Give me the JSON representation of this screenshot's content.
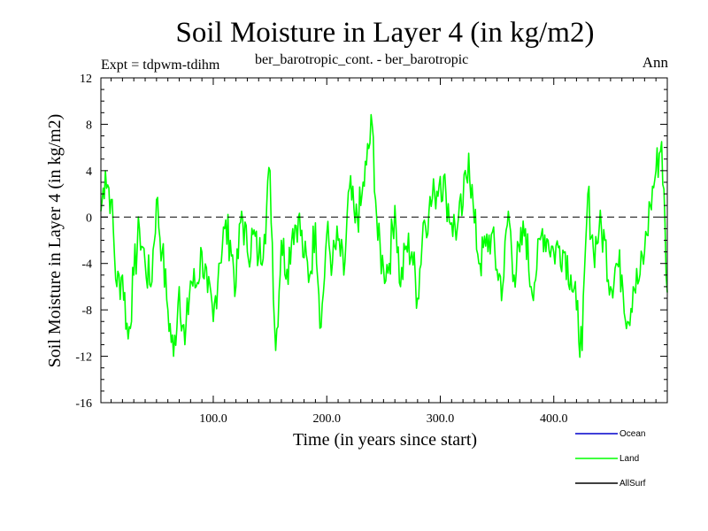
{
  "chart_data": {
    "type": "line",
    "title": "Soil Moisture in Layer 4 (in kg/m2)",
    "experiment_label": "Expt = tdpwm-tdihm",
    "subtitle": "ber_barotropic_cont. - ber_barotropic",
    "period_label": "Ann",
    "xlabel": "Time (in years since start)",
    "ylabel": "Soil Moisture in Layer 4 (in kg/m2)",
    "xlim": [
      1,
      500
    ],
    "ylim": [
      -16,
      12
    ],
    "x_ticks": [
      100,
      200,
      300,
      400
    ],
    "x_tick_labels": [
      "100.0",
      "200.0",
      "300.0",
      "400.0"
    ],
    "y_ticks": [
      -16,
      -12,
      -8,
      -4,
      0,
      4,
      8,
      12
    ],
    "y_tick_labels": [
      "-16",
      "-12",
      "-8",
      "-4",
      "0",
      "4",
      "8",
      "12"
    ],
    "zero_line": true,
    "legend": [
      {
        "name": "Ocean",
        "color": "#0000cc"
      },
      {
        "name": "Land",
        "color": "#00ff00"
      },
      {
        "name": "AllSurf",
        "color": "#000000"
      }
    ],
    "series": [
      {
        "name": "Land",
        "color": "#00ff00",
        "x": [
          1,
          5,
          10,
          15,
          20,
          25,
          30,
          35,
          40,
          45,
          50,
          55,
          60,
          65,
          70,
          75,
          80,
          85,
          90,
          95,
          100,
          105,
          110,
          115,
          120,
          125,
          130,
          135,
          140,
          145,
          150,
          155,
          160,
          165,
          170,
          175,
          180,
          185,
          190,
          195,
          200,
          205,
          210,
          215,
          220,
          225,
          230,
          235,
          240,
          245,
          250,
          255,
          260,
          265,
          270,
          275,
          280,
          285,
          290,
          295,
          300,
          305,
          310,
          315,
          320,
          325,
          330,
          335,
          340,
          345,
          350,
          355,
          360,
          365,
          370,
          375,
          380,
          385,
          390,
          395,
          400,
          405,
          410,
          415,
          420,
          425,
          430,
          435,
          440,
          445,
          450,
          455,
          460,
          465,
          470,
          475,
          480,
          485,
          490,
          495,
          500
        ],
        "values": [
          0.5,
          4.0,
          1.5,
          -6.0,
          -5.0,
          -10.5,
          -5.0,
          -1.0,
          -4.0,
          -6.0,
          1.5,
          -3.0,
          -8.0,
          -12.0,
          -6.0,
          -11.0,
          -5.5,
          -6.0,
          -3.0,
          -6.5,
          -9.0,
          -4.0,
          -1.0,
          -2.0,
          -6.0,
          0.5,
          -3.0,
          -1.5,
          -3.5,
          -1.5,
          4.0,
          -11.5,
          -2.0,
          -4.5,
          -1.0,
          0.0,
          -3.5,
          -5.0,
          -0.5,
          -9.5,
          -1.5,
          -4.0,
          -2.0,
          -5.0,
          2.5,
          -0.5,
          1.0,
          4.5,
          8.0,
          -2.0,
          -4.5,
          -4.0,
          1.0,
          -6.0,
          -2.5,
          -3.0,
          -7.0,
          -0.5,
          0.5,
          2.0,
          3.5,
          2.0,
          -0.5,
          -1.0,
          1.0,
          5.5,
          -0.5,
          -4.0,
          -2.5,
          -1.5,
          -4.5,
          -6.0,
          0.5,
          -5.0,
          -3.0,
          -1.0,
          -6.0,
          -4.5,
          -1.0,
          -2.0,
          -3.0,
          -2.5,
          -3.0,
          -5.0,
          -8.0,
          -11.5,
          2.0,
          -3.0,
          -1.0,
          -2.0,
          -6.0,
          -4.0,
          -5.0,
          -9.0,
          -6.0,
          -5.5,
          -3.0,
          1.0,
          4.0,
          6.5,
          -6.5
        ]
      }
    ]
  }
}
